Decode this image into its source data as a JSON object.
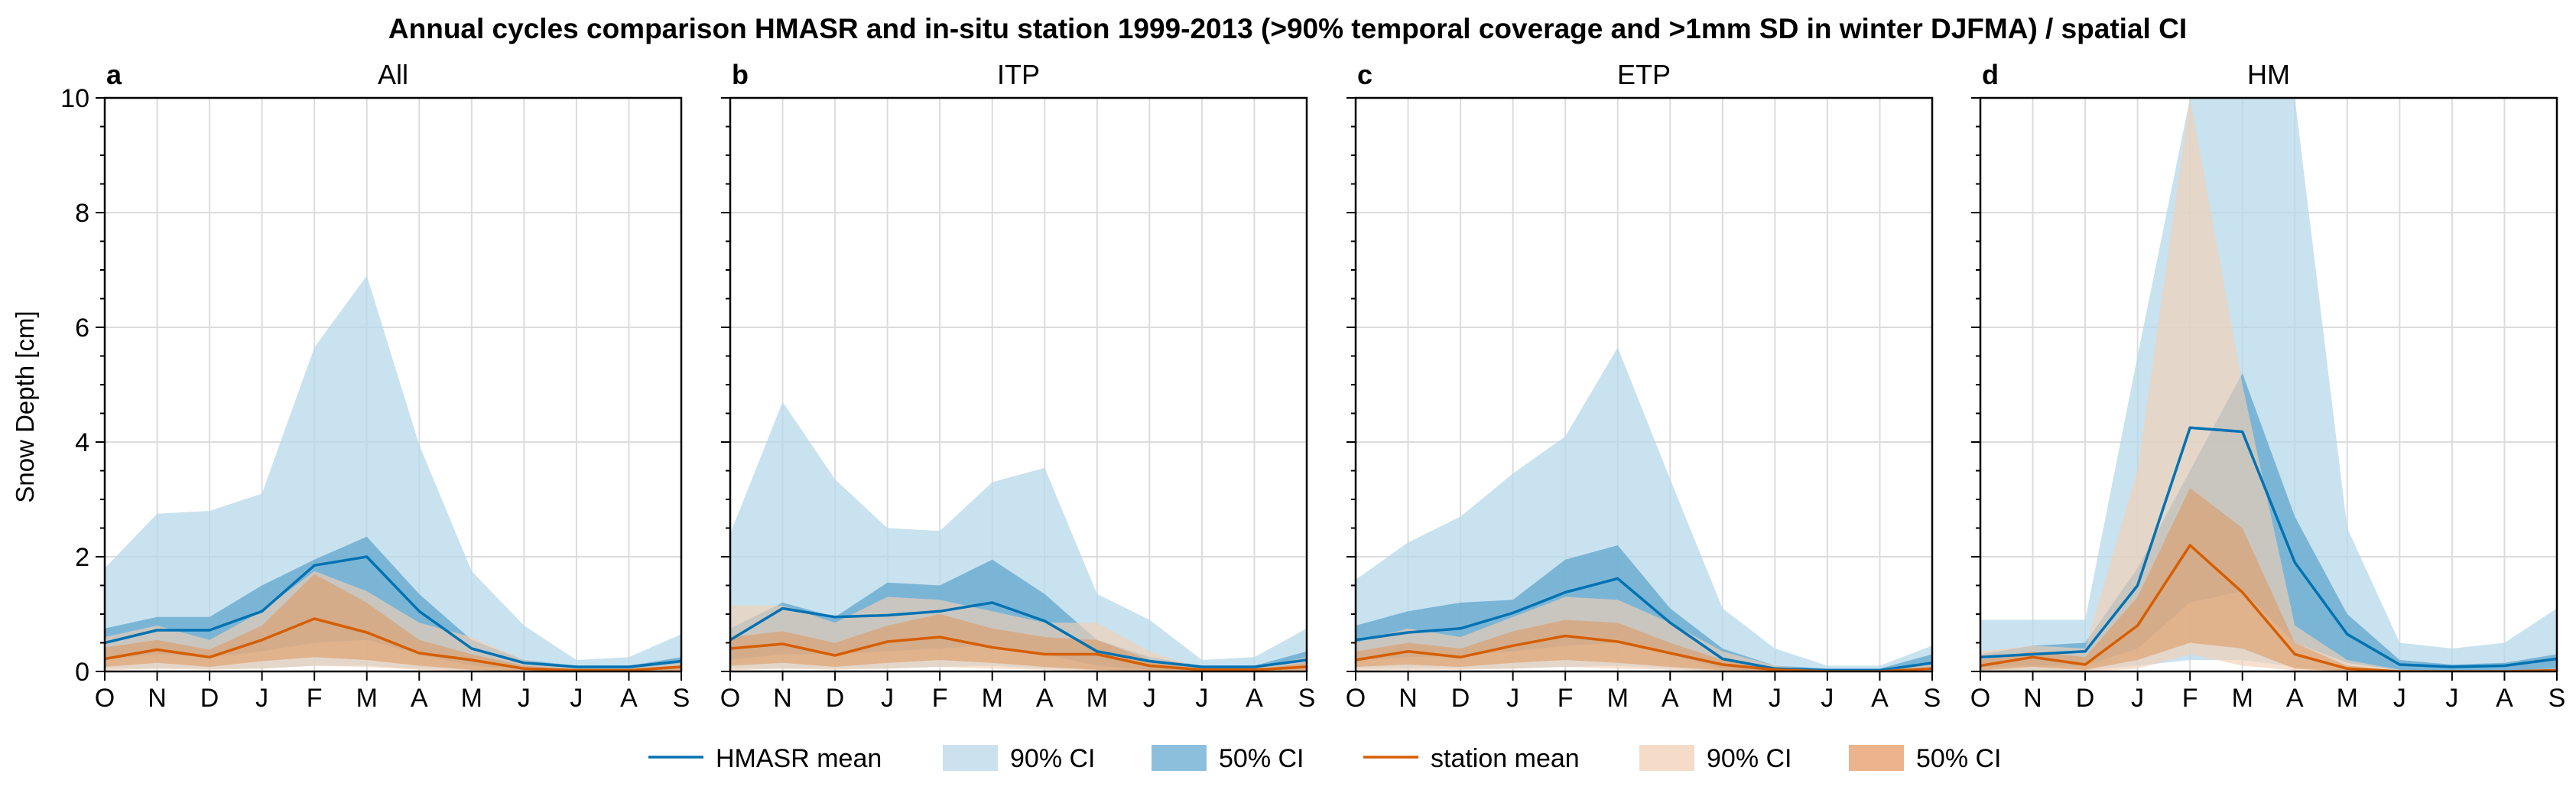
{
  "figure": {
    "title": "Annual cycles comparison HMASR and in-situ station 1999-2013 (>90% temporal coverage and >1mm SD in winter DJFMA) / spatial CI"
  },
  "legend": {
    "items": [
      {
        "label": "HMASR mean",
        "kind": "line",
        "color": "#0072b2"
      },
      {
        "label": "90% CI",
        "kind": "patch",
        "color": "#cbe2ee"
      },
      {
        "label": "50% CI",
        "kind": "patch",
        "color": "#8cbfdb"
      },
      {
        "label": "station mean",
        "kind": "line",
        "color": "#d55e00"
      },
      {
        "label": "90% CI",
        "kind": "patch",
        "color": "#f5dcc8"
      },
      {
        "label": "50% CI",
        "kind": "patch",
        "color": "#ebb48c"
      }
    ]
  },
  "colors": {
    "hmasr": "#0072b2",
    "hmasr_ci90": "#b7d8ea",
    "hmasr_ci50": "#5aa2cc",
    "station": "#d55e00",
    "station_ci90": "#f2cfb3",
    "station_ci50": "#dd9b66",
    "grid": "#dcdcdc"
  },
  "chart_data": {
    "type": "area",
    "ylabel": "Snow Depth [cm]",
    "ylim": [
      0,
      10
    ],
    "yticks": [
      0,
      2,
      4,
      6,
      8,
      10
    ],
    "categories": [
      "O",
      "N",
      "D",
      "J",
      "F",
      "M",
      "A",
      "M",
      "J",
      "J",
      "A",
      "S"
    ],
    "grid": true,
    "legend_position": "bottom-center",
    "panels": [
      {
        "letter": "a",
        "title": "All",
        "hmasr_mean": [
          0.5,
          0.72,
          0.72,
          1.05,
          1.85,
          2.0,
          1.05,
          0.4,
          0.15,
          0.08,
          0.08,
          0.18
        ],
        "hmasr_ci90_low": [
          0.05,
          0.05,
          0.05,
          0.05,
          0.1,
          0.1,
          0.05,
          0.02,
          0.0,
          0.0,
          0.0,
          0.0
        ],
        "hmasr_ci90_high": [
          1.8,
          2.75,
          2.8,
          3.1,
          5.65,
          6.9,
          3.95,
          1.75,
          0.8,
          0.2,
          0.25,
          0.65
        ],
        "hmasr_ci50_low": [
          0.2,
          0.3,
          0.25,
          0.35,
          0.5,
          0.55,
          0.3,
          0.1,
          0.03,
          0.0,
          0.0,
          0.05
        ],
        "hmasr_ci50_high": [
          0.75,
          0.95,
          0.95,
          1.5,
          1.95,
          2.35,
          1.35,
          0.55,
          0.2,
          0.1,
          0.1,
          0.25
        ],
        "station_mean": [
          0.22,
          0.38,
          0.25,
          0.55,
          0.92,
          0.68,
          0.32,
          0.2,
          0.05,
          0.02,
          0.02,
          0.08
        ],
        "station_ci90_low": [
          0.02,
          0.05,
          0.03,
          0.05,
          0.1,
          0.08,
          0.03,
          0.0,
          0.0,
          0.0,
          0.0,
          0.0
        ],
        "station_ci90_high": [
          0.6,
          0.8,
          0.55,
          1.05,
          1.75,
          1.4,
          0.85,
          0.6,
          0.2,
          0.05,
          0.05,
          0.15
        ],
        "station_ci50_low": [
          0.08,
          0.15,
          0.08,
          0.18,
          0.25,
          0.2,
          0.1,
          0.03,
          0.0,
          0.0,
          0.0,
          0.0
        ],
        "station_ci50_high": [
          0.42,
          0.55,
          0.38,
          0.8,
          1.7,
          1.2,
          0.55,
          0.3,
          0.1,
          0.03,
          0.03,
          0.1
        ]
      },
      {
        "letter": "b",
        "title": "ITP",
        "hmasr_mean": [
          0.55,
          1.1,
          0.95,
          0.98,
          1.05,
          1.2,
          0.88,
          0.35,
          0.18,
          0.08,
          0.08,
          0.2
        ],
        "hmasr_ci90_low": [
          0.05,
          0.05,
          0.05,
          0.05,
          0.08,
          0.1,
          0.05,
          0.02,
          0.0,
          0.0,
          0.0,
          0.0
        ],
        "hmasr_ci90_high": [
          2.4,
          4.7,
          3.35,
          2.5,
          2.45,
          3.3,
          3.55,
          1.35,
          0.9,
          0.2,
          0.25,
          0.75
        ],
        "hmasr_ci50_low": [
          0.2,
          0.3,
          0.3,
          0.35,
          0.4,
          0.45,
          0.3,
          0.1,
          0.03,
          0.0,
          0.0,
          0.05
        ],
        "hmasr_ci50_high": [
          0.75,
          1.2,
          0.95,
          1.55,
          1.5,
          1.95,
          1.35,
          0.55,
          0.25,
          0.1,
          0.1,
          0.35
        ],
        "station_mean": [
          0.4,
          0.48,
          0.28,
          0.52,
          0.6,
          0.42,
          0.3,
          0.3,
          0.1,
          0.03,
          0.03,
          0.08
        ],
        "station_ci90_low": [
          0.02,
          0.05,
          0.03,
          0.05,
          0.08,
          0.05,
          0.03,
          0.0,
          0.0,
          0.0,
          0.0,
          0.0
        ],
        "station_ci90_high": [
          1.15,
          1.15,
          0.85,
          1.3,
          1.25,
          1.05,
          0.85,
          0.85,
          0.35,
          0.05,
          0.05,
          0.25
        ],
        "station_ci50_low": [
          0.1,
          0.15,
          0.08,
          0.15,
          0.2,
          0.15,
          0.08,
          0.03,
          0.0,
          0.0,
          0.0,
          0.0
        ],
        "station_ci50_high": [
          0.6,
          0.7,
          0.5,
          0.8,
          1.0,
          0.75,
          0.6,
          0.55,
          0.2,
          0.03,
          0.03,
          0.15
        ]
      },
      {
        "letter": "c",
        "title": "ETP",
        "hmasr_mean": [
          0.55,
          0.68,
          0.75,
          1.02,
          1.38,
          1.62,
          0.85,
          0.22,
          0.05,
          0.02,
          0.02,
          0.15
        ],
        "hmasr_ci90_low": [
          0.05,
          0.05,
          0.05,
          0.05,
          0.08,
          0.1,
          0.05,
          0.0,
          0.0,
          0.0,
          0.0,
          0.0
        ],
        "hmasr_ci90_high": [
          1.6,
          2.25,
          2.7,
          3.45,
          4.1,
          5.65,
          3.35,
          1.1,
          0.4,
          0.1,
          0.1,
          0.45
        ],
        "hmasr_ci50_low": [
          0.2,
          0.25,
          0.28,
          0.35,
          0.45,
          0.5,
          0.3,
          0.05,
          0.0,
          0.0,
          0.0,
          0.03
        ],
        "hmasr_ci50_high": [
          0.8,
          1.05,
          1.2,
          1.25,
          1.95,
          2.2,
          1.1,
          0.4,
          0.1,
          0.05,
          0.05,
          0.3
        ],
        "station_mean": [
          0.2,
          0.35,
          0.25,
          0.45,
          0.62,
          0.52,
          0.32,
          0.12,
          0.03,
          0.0,
          0.0,
          0.05
        ],
        "station_ci90_low": [
          0.02,
          0.03,
          0.03,
          0.05,
          0.08,
          0.05,
          0.03,
          0.0,
          0.0,
          0.0,
          0.0,
          0.0
        ],
        "station_ci90_high": [
          0.5,
          0.75,
          0.6,
          0.95,
          1.3,
          1.25,
          0.85,
          0.35,
          0.1,
          0.02,
          0.02,
          0.12
        ],
        "station_ci50_low": [
          0.08,
          0.12,
          0.08,
          0.15,
          0.2,
          0.15,
          0.08,
          0.02,
          0.0,
          0.0,
          0.0,
          0.0
        ],
        "station_ci50_high": [
          0.35,
          0.5,
          0.4,
          0.7,
          0.9,
          0.85,
          0.5,
          0.2,
          0.05,
          0.01,
          0.01,
          0.08
        ]
      },
      {
        "letter": "d",
        "title": "HM",
        "hmasr_mean": [
          0.25,
          0.3,
          0.35,
          1.5,
          4.25,
          4.18,
          1.9,
          0.65,
          0.12,
          0.08,
          0.1,
          0.22
        ],
        "hmasr_ci90_low": [
          0.02,
          0.02,
          0.02,
          0.1,
          0.2,
          0.2,
          0.08,
          0.02,
          0.0,
          0.0,
          0.0,
          0.0
        ],
        "hmasr_ci90_high": [
          0.9,
          0.9,
          0.9,
          5.5,
          10.5,
          10.5,
          10.5,
          2.5,
          0.5,
          0.4,
          0.5,
          1.1
        ],
        "hmasr_ci50_low": [
          0.08,
          0.1,
          0.1,
          0.4,
          1.2,
          1.4,
          0.5,
          0.15,
          0.02,
          0.0,
          0.02,
          0.05
        ],
        "hmasr_ci50_high": [
          0.3,
          0.45,
          0.5,
          1.8,
          3.5,
          5.2,
          2.7,
          1.0,
          0.2,
          0.12,
          0.15,
          0.3
        ],
        "station_mean": [
          0.1,
          0.25,
          0.12,
          0.8,
          2.2,
          1.38,
          0.3,
          0.05,
          0.0,
          0.0,
          0.0,
          0.02
        ],
        "station_ci90_low": [
          0.0,
          0.02,
          0.0,
          0.05,
          0.3,
          0.1,
          0.02,
          0.0,
          0.0,
          0.0,
          0.0,
          0.0
        ],
        "station_ci90_high": [
          0.35,
          0.45,
          0.4,
          3.5,
          10.5,
          5.0,
          0.8,
          0.2,
          0.03,
          0.0,
          0.0,
          0.05
        ],
        "station_ci50_low": [
          0.02,
          0.08,
          0.03,
          0.2,
          0.5,
          0.4,
          0.05,
          0.0,
          0.0,
          0.0,
          0.0,
          0.0
        ],
        "station_ci50_high": [
          0.2,
          0.35,
          0.25,
          1.3,
          3.2,
          2.5,
          0.5,
          0.1,
          0.01,
          0.0,
          0.0,
          0.03
        ]
      }
    ]
  }
}
